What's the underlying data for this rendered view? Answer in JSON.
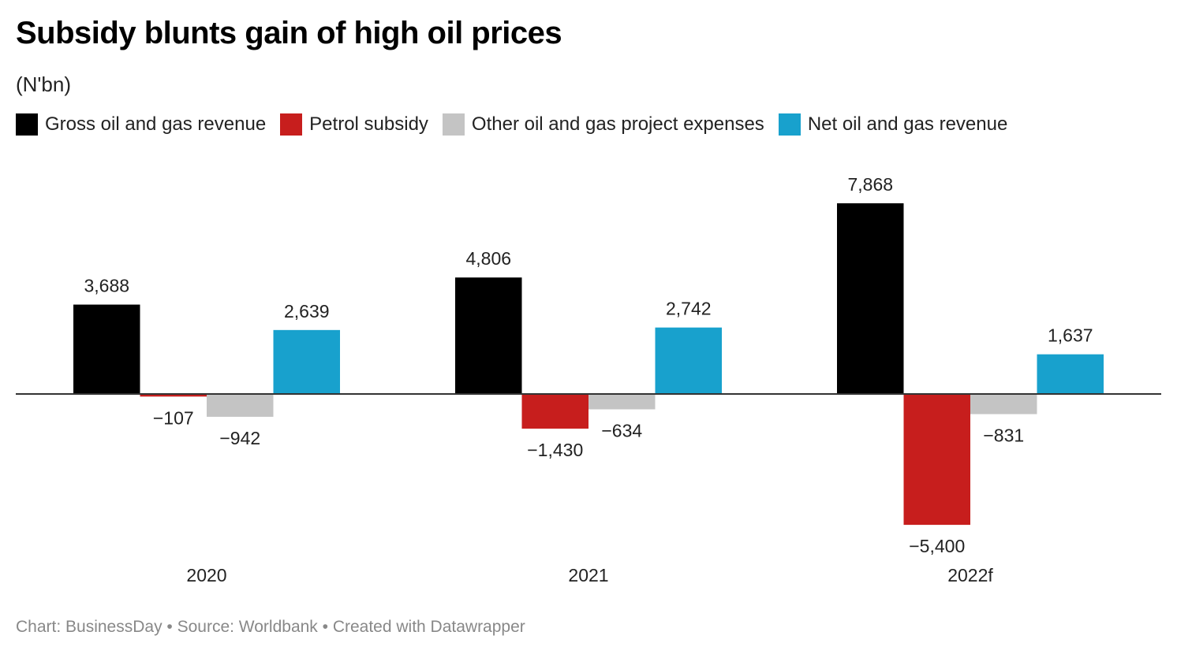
{
  "chart_data": {
    "type": "bar",
    "title": "Subsidy blunts gain of high oil prices",
    "subtitle": "(N'bn)",
    "categories": [
      "2020",
      "2021",
      "2022f"
    ],
    "series": [
      {
        "name": "Gross oil and gas revenue",
        "color": "#000000",
        "values": [
          3688,
          4806,
          7868
        ],
        "labels": [
          "3,688",
          "4,806",
          "7,868"
        ]
      },
      {
        "name": "Petrol subsidy",
        "color": "#c71e1d",
        "values": [
          -107,
          -1430,
          -5400
        ],
        "labels": [
          "−107",
          "−1,430",
          "−5,400"
        ]
      },
      {
        "name": "Other oil and gas project expenses",
        "color": "#c4c4c4",
        "values": [
          -942,
          -634,
          -831
        ],
        "labels": [
          "−942",
          "−634",
          "−831"
        ]
      },
      {
        "name": "Net oil and gas revenue",
        "color": "#18a1cd",
        "values": [
          2639,
          2742,
          1637
        ],
        "labels": [
          "2,639",
          "2,742",
          "1,637"
        ]
      }
    ],
    "xlabel": "",
    "ylabel": "",
    "ylim": [
      -5400,
      7868
    ],
    "grid": false,
    "legend": "top-left"
  },
  "footer": {
    "credit": "Chart: BusinessDay • Source: Worldbank • Created with Datawrapper"
  }
}
